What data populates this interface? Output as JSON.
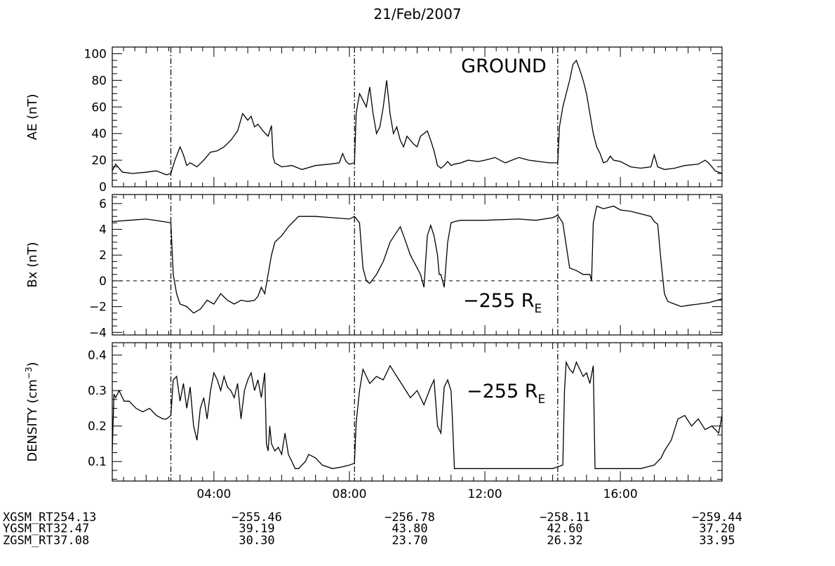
{
  "chart_data": {
    "title": "21/Feb/2007",
    "type": "line",
    "x_range_hours": [
      1.0,
      19.0
    ],
    "x_tick_labels": [
      "04:00",
      "08:00",
      "12:00",
      "16:00"
    ],
    "x_tick_hours": [
      4,
      8,
      12,
      16
    ],
    "event_lines_hours": [
      2.73,
      8.15,
      14.15
    ],
    "panels": [
      {
        "ylabel": "AE (nT)",
        "ylim": [
          0,
          105
        ],
        "yticks": [
          "0",
          "20",
          "40",
          "60",
          "80",
          "100"
        ],
        "annotation": "GROUND",
        "zero_line": false,
        "series": [
          {
            "x": [
              1.0,
              1.1,
              1.3,
              1.6,
              2.0,
              2.3,
              2.6,
              2.73,
              2.85,
              3.0,
              3.1,
              3.2,
              3.3,
              3.5,
              3.7,
              3.9,
              4.1,
              4.3,
              4.5,
              4.7,
              4.85,
              5.0,
              5.1,
              5.2,
              5.3,
              5.45,
              5.6,
              5.7,
              5.75,
              5.8,
              6.0,
              6.3,
              6.6,
              7.0,
              7.4,
              7.7,
              7.8,
              7.9,
              8.0,
              8.15,
              8.2,
              8.3,
              8.4,
              8.5,
              8.6,
              8.7,
              8.8,
              8.9,
              9.0,
              9.1,
              9.2,
              9.3,
              9.4,
              9.5,
              9.6,
              9.7,
              9.8,
              9.9,
              10.0,
              10.1,
              10.2,
              10.3,
              10.4,
              10.5,
              10.6,
              10.7,
              10.8,
              10.9,
              11.0,
              11.1,
              11.3,
              11.5,
              11.8,
              12.0,
              12.3,
              12.6,
              13.0,
              13.3,
              13.6,
              13.9,
              14.15,
              14.2,
              14.3,
              14.4,
              14.5,
              14.6,
              14.7,
              14.8,
              14.9,
              15.0,
              15.1,
              15.2,
              15.3,
              15.4,
              15.5,
              15.6,
              15.7,
              15.8,
              16.0,
              16.3,
              16.6,
              16.9,
              17.0,
              17.1,
              17.3,
              17.6,
              17.9,
              18.3,
              18.5,
              18.6,
              18.7,
              18.8,
              19.0
            ],
            "y": [
              12,
              17,
              11,
              10,
              11,
              12,
              9,
              10,
              20,
              30,
              24,
              16,
              18,
              15,
              20,
              26,
              27,
              30,
              35,
              42,
              55,
              50,
              53,
              45,
              47,
              42,
              38,
              46,
              22,
              18,
              15,
              16,
              13,
              16,
              17,
              18,
              25,
              19,
              17,
              18,
              55,
              70,
              65,
              60,
              75,
              55,
              40,
              45,
              60,
              80,
              55,
              40,
              45,
              35,
              30,
              38,
              35,
              32,
              30,
              38,
              40,
              42,
              35,
              27,
              16,
              14,
              16,
              19,
              16,
              17,
              18,
              20,
              19,
              20,
              22,
              18,
              22,
              20,
              19,
              18,
              18,
              45,
              60,
              70,
              80,
              92,
              95,
              88,
              80,
              70,
              55,
              40,
              30,
              25,
              18,
              19,
              23,
              20,
              19,
              15,
              14,
              15,
              24,
              15,
              13,
              14,
              16,
              17,
              20,
              18,
              15,
              12,
              10
            ]
          }
        ]
      },
      {
        "ylabel": "Bx (nT)",
        "ylim": [
          -4.2,
          6.7
        ],
        "yticks": [
          "-4",
          "-2",
          "0",
          "2",
          "4",
          "6"
        ],
        "annotation": "-255 R",
        "annotation_sub": "E",
        "zero_line": true,
        "series": [
          {
            "x": [
              1.0,
              1.5,
              2.0,
              2.5,
              2.73,
              2.8,
              2.9,
              3.0,
              3.2,
              3.4,
              3.6,
              3.8,
              4.0,
              4.2,
              4.4,
              4.6,
              4.8,
              5.0,
              5.2,
              5.3,
              5.4,
              5.5,
              5.6,
              5.7,
              5.8,
              6.0,
              6.2,
              6.5,
              7.0,
              7.5,
              8.0,
              8.15,
              8.3,
              8.4,
              8.5,
              8.6,
              8.8,
              9.0,
              9.2,
              9.4,
              9.5,
              9.6,
              9.8,
              10.0,
              10.1,
              10.2,
              10.3,
              10.4,
              10.5,
              10.6,
              10.65,
              10.7,
              10.8,
              10.9,
              11.0,
              11.1,
              11.3,
              12.0,
              13.0,
              13.5,
              14.0,
              14.15,
              14.3,
              14.5,
              14.7,
              14.9,
              15.1,
              15.15,
              15.2,
              15.3,
              15.5,
              15.8,
              16.0,
              16.3,
              16.6,
              16.9,
              17.0,
              17.1,
              17.2,
              17.3,
              17.4,
              17.6,
              17.8,
              18.0,
              18.3,
              18.6,
              19.0
            ],
            "y": [
              4.6,
              4.7,
              4.8,
              4.6,
              4.5,
              0.5,
              -1.0,
              -1.8,
              -2.0,
              -2.5,
              -2.2,
              -1.5,
              -1.8,
              -1.0,
              -1.5,
              -1.8,
              -1.5,
              -1.6,
              -1.5,
              -1.2,
              -0.5,
              -1.0,
              0.5,
              2.0,
              3.0,
              3.5,
              4.2,
              5.0,
              5.0,
              4.9,
              4.8,
              5.0,
              4.5,
              1.0,
              0.0,
              -0.2,
              0.5,
              1.5,
              3.0,
              3.8,
              4.2,
              3.5,
              2.0,
              1.0,
              0.5,
              -0.5,
              3.5,
              4.3,
              3.5,
              2.0,
              0.5,
              0.5,
              -0.5,
              3.0,
              4.5,
              4.6,
              4.7,
              4.7,
              4.8,
              4.7,
              4.9,
              5.1,
              4.5,
              1.0,
              0.8,
              0.5,
              0.5,
              0.0,
              4.5,
              5.8,
              5.6,
              5.8,
              5.5,
              5.4,
              5.2,
              5.0,
              4.6,
              4.4,
              1.5,
              -1.0,
              -1.6,
              -1.8,
              -2.0,
              -1.9,
              -1.8,
              -1.7,
              -1.4
            ]
          }
        ]
      },
      {
        "ylabel": "DENSITY (cm",
        "ylabel_sup": "-3",
        "ylabel_close": ")",
        "ylim": [
          0.045,
          0.435
        ],
        "yticks": [
          "0.1",
          "0.2",
          "0.3",
          "0.4"
        ],
        "annotation": "-255 R",
        "annotation_sub": "E",
        "zero_line": false,
        "series": [
          {
            "x": [
              1.0,
              1.05,
              1.1,
              1.2,
              1.35,
              1.5,
              1.7,
              1.9,
              2.1,
              2.3,
              2.5,
              2.6,
              2.73,
              2.8,
              2.9,
              3.0,
              3.1,
              3.2,
              3.3,
              3.4,
              3.5,
              3.6,
              3.7,
              3.8,
              3.9,
              4.0,
              4.1,
              4.2,
              4.3,
              4.4,
              4.5,
              4.6,
              4.7,
              4.8,
              4.9,
              5.0,
              5.1,
              5.2,
              5.3,
              5.4,
              5.5,
              5.55,
              5.6,
              5.65,
              5.7,
              5.8,
              5.9,
              6.0,
              6.1,
              6.2,
              6.3,
              6.4,
              6.5,
              6.6,
              6.7,
              6.8,
              7.0,
              7.2,
              7.5,
              7.8,
              8.0,
              8.15,
              8.2,
              8.3,
              8.4,
              8.5,
              8.6,
              8.8,
              9.0,
              9.2,
              9.4,
              9.6,
              9.8,
              10.0,
              10.2,
              10.4,
              10.5,
              10.6,
              10.7,
              10.8,
              10.9,
              11.0,
              11.05,
              11.1,
              11.5,
              12.0,
              12.5,
              13.0,
              13.5,
              14.0,
              14.15,
              14.3,
              14.35,
              14.4,
              14.5,
              14.6,
              14.7,
              14.8,
              14.9,
              15.0,
              15.1,
              15.2,
              15.25,
              15.3,
              15.5,
              15.8,
              16.0,
              16.3,
              16.6,
              16.8,
              17.0,
              17.2,
              17.3,
              17.5,
              17.7,
              17.9,
              18.1,
              18.3,
              18.5,
              18.7,
              18.9,
              19.0
            ],
            "y": [
              0.13,
              0.29,
              0.28,
              0.3,
              0.27,
              0.27,
              0.25,
              0.24,
              0.25,
              0.23,
              0.22,
              0.22,
              0.23,
              0.33,
              0.34,
              0.27,
              0.32,
              0.25,
              0.31,
              0.2,
              0.16,
              0.25,
              0.28,
              0.22,
              0.3,
              0.35,
              0.33,
              0.3,
              0.34,
              0.31,
              0.3,
              0.28,
              0.32,
              0.22,
              0.3,
              0.33,
              0.35,
              0.3,
              0.33,
              0.28,
              0.35,
              0.15,
              0.13,
              0.2,
              0.15,
              0.13,
              0.14,
              0.12,
              0.18,
              0.12,
              0.1,
              0.08,
              0.08,
              0.09,
              0.1,
              0.12,
              0.11,
              0.09,
              0.08,
              0.085,
              0.09,
              0.095,
              0.21,
              0.3,
              0.36,
              0.34,
              0.32,
              0.34,
              0.33,
              0.37,
              0.34,
              0.31,
              0.28,
              0.3,
              0.26,
              0.31,
              0.33,
              0.2,
              0.18,
              0.31,
              0.33,
              0.3,
              0.2,
              0.08,
              0.08,
              0.08,
              0.08,
              0.08,
              0.08,
              0.08,
              0.085,
              0.09,
              0.3,
              0.38,
              0.36,
              0.35,
              0.38,
              0.36,
              0.34,
              0.35,
              0.32,
              0.37,
              0.08,
              0.08,
              0.08,
              0.08,
              0.08,
              0.08,
              0.08,
              0.085,
              0.09,
              0.11,
              0.13,
              0.16,
              0.22,
              0.23,
              0.2,
              0.22,
              0.19,
              0.2,
              0.18,
              0.23
            ]
          }
        ]
      }
    ],
    "orbit_rows": [
      {
        "label": "XGSM_RT",
        "values": [
          "254.13",
          "-255.46",
          "-256.78",
          "-258.11",
          "-259.44"
        ]
      },
      {
        "label": "YGSM_RT",
        "values": [
          "32.47",
          "39.19",
          "43.80",
          "42.60",
          "37.20"
        ]
      },
      {
        "label": "ZGSM_RT",
        "values": [
          "37.08",
          "30.30",
          "23.70",
          "26.32",
          "33.95"
        ]
      }
    ]
  }
}
